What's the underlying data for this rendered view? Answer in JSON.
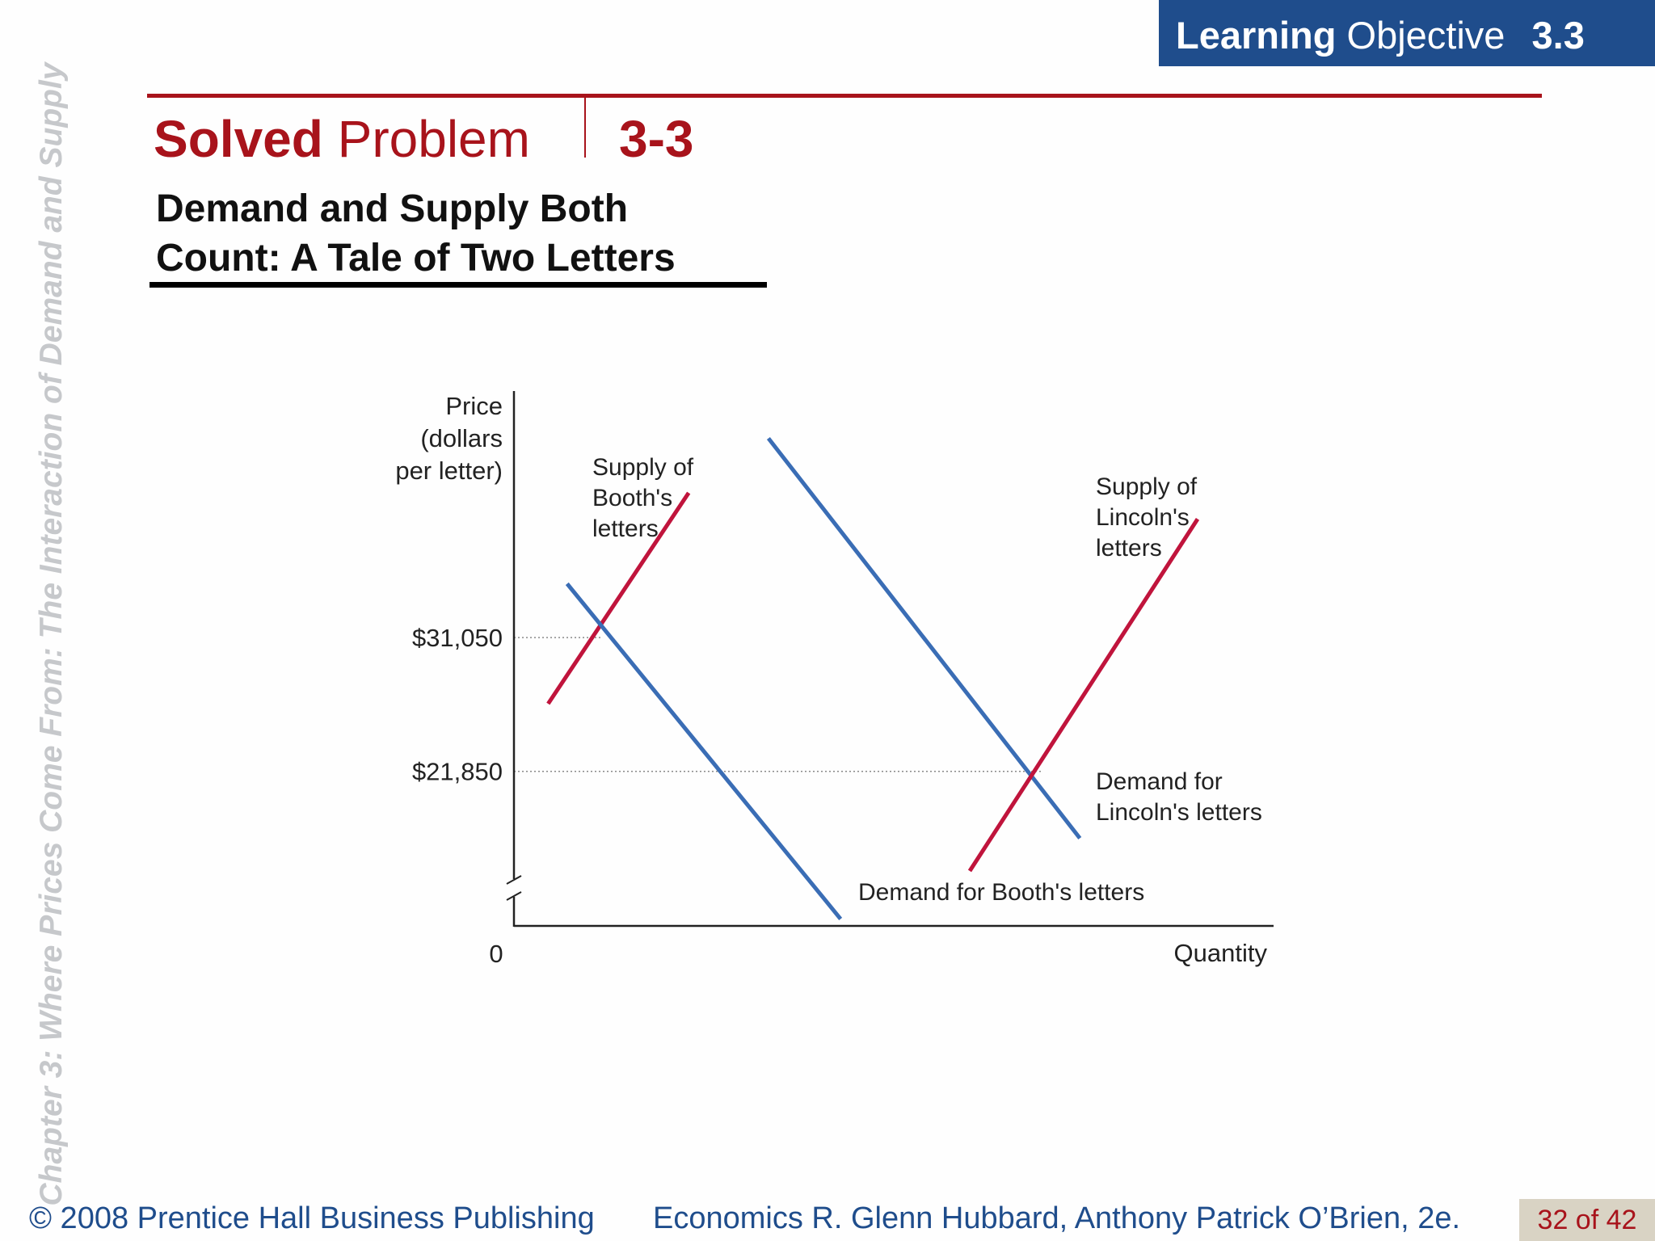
{
  "side_label": "Chapter 3: Where Prices Come From: The Interaction of Demand and Supply",
  "learning_objective": {
    "bold": "Learning",
    "rest": "Objective",
    "number": "3.3"
  },
  "solved_problem": {
    "bold": "Solved",
    "rest": "Problem",
    "number": "3-3"
  },
  "subtitle": {
    "line1": "Demand and Supply Both",
    "line2": "Count:  A Tale of Two Letters"
  },
  "chart_data": {
    "type": "line",
    "ylabel": [
      "Price",
      "(dollars",
      "per letter)"
    ],
    "xlabel": "Quantity",
    "origin_label": "0",
    "y_ticks": [
      {
        "value": 31050,
        "label": "$31,050"
      },
      {
        "value": 21850,
        "label": "$21,850"
      }
    ],
    "axis_break": true,
    "ylim": [
      14000,
      44000
    ],
    "xlim": [
      0,
      100
    ],
    "grid": false,
    "series": [
      {
        "name": "Supply of Booth's letters",
        "label_lines": [
          "Supply of",
          "Booth's",
          "letters"
        ],
        "color": "#c0143c",
        "points": [
          [
            4.5,
            26500
          ],
          [
            23,
            41000
          ]
        ]
      },
      {
        "name": "Demand for Booth's letters",
        "label_lines": [
          "Demand for Booth's letters"
        ],
        "color": "#3a6db5",
        "points": [
          [
            7,
            34750
          ],
          [
            43,
            11700
          ]
        ]
      },
      {
        "name": "Demand for Lincoln's letters",
        "label_lines": [
          "Demand for",
          "Lincoln's letters"
        ],
        "color": "#3a6db5",
        "points": [
          [
            33.5,
            44750
          ],
          [
            74.5,
            17250
          ]
        ]
      },
      {
        "name": "Supply of Lincoln's letters",
        "label_lines": [
          "Supply of",
          "Lincoln's",
          "letters"
        ],
        "color": "#c0143c",
        "points": [
          [
            60,
            15000
          ],
          [
            90,
            39200
          ]
        ]
      }
    ],
    "guides": [
      {
        "y": 31050,
        "x_end": 11.7
      },
      {
        "y": 21850,
        "x_end": 69.5
      }
    ]
  },
  "footer": {
    "copyright": "© 2008 Prentice Hall Business Publishing",
    "book": "Economics  R. Glenn Hubbard, Anthony Patrick O’Brien, 2e.",
    "page": "32 of 42"
  },
  "colors": {
    "brand_red": "#a8131b",
    "brand_blue": "#1f4d8c",
    "side_label_gray": "#c6c8cb"
  }
}
